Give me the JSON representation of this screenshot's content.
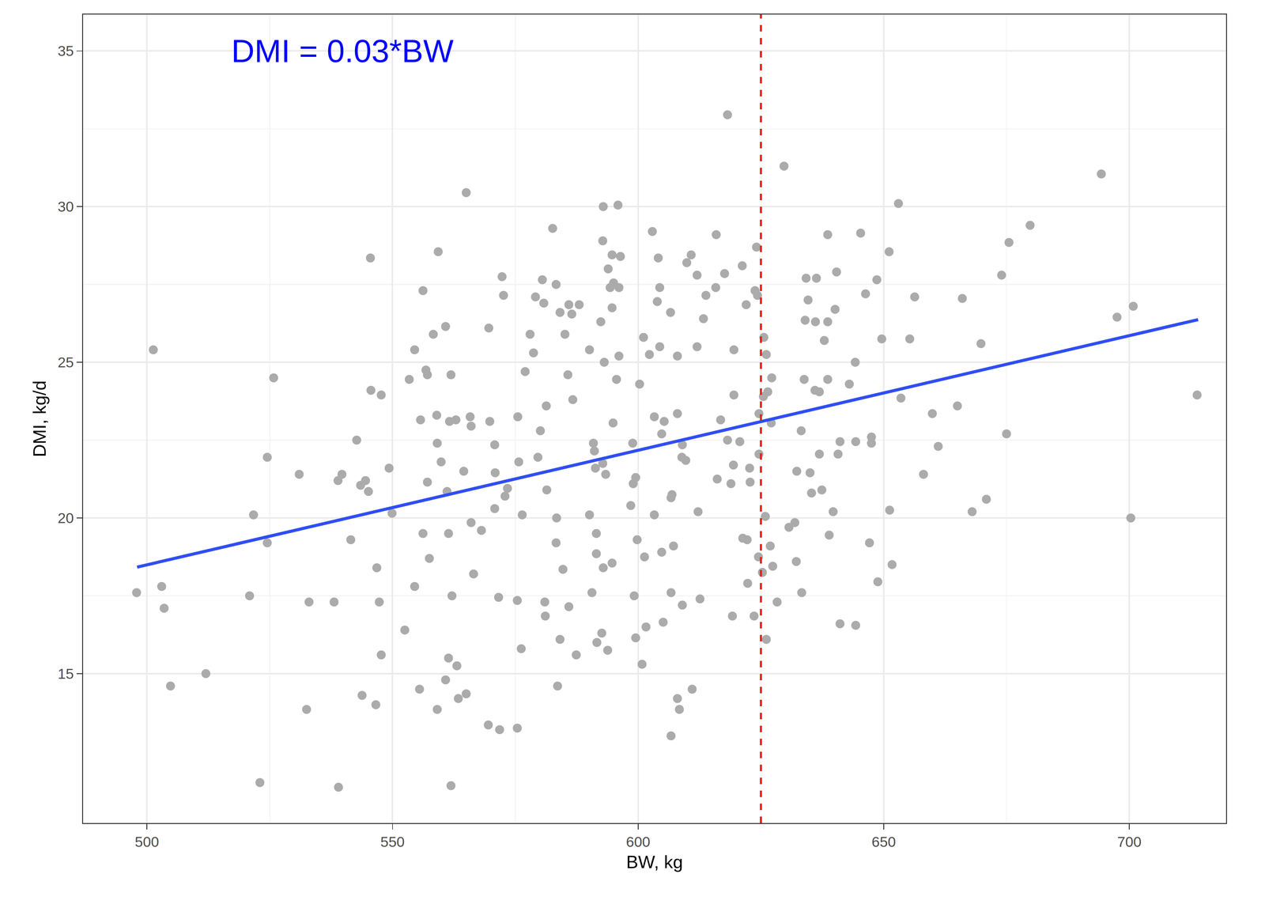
{
  "chart_data": {
    "type": "scatter",
    "annotations": [
      "DMI = 0.03*BW"
    ],
    "x_label": "BW, kg",
    "y_label": "DMI, kg/d",
    "xlim": [
      487,
      719.7
    ],
    "ylim": [
      10.2,
      36.17
    ],
    "xticks": [
      500,
      550,
      600,
      650,
      700
    ],
    "yticks": [
      15,
      20,
      25,
      30,
      35
    ],
    "grid": true,
    "series": [
      {
        "type": "scatter",
        "marker": "circle",
        "color": "#ababab",
        "x": [
          497.9,
          501.3,
          503,
          503.5,
          504.8,
          512,
          520.9,
          521.7,
          523,
          524.5,
          524.5,
          525.8,
          531,
          532.5,
          533,
          538.1,
          538.9,
          539,
          539.7,
          541.5,
          542.7,
          543.5,
          543.8,
          544.5,
          545.1,
          545.5,
          545.6,
          546.6,
          546.8,
          547.3,
          547.7,
          547.7,
          549.3,
          549.9,
          552.5,
          553.4,
          554.5,
          554.5,
          555.5,
          555.7,
          556.2,
          556.2,
          556.8,
          557.1,
          557.1,
          557.5,
          558.3,
          559,
          559.1,
          559.1,
          559.3,
          559.9,
          560.8,
          560.8,
          561.1,
          561.4,
          561.4,
          561.6,
          561.9,
          561.9,
          562.1,
          562.9,
          563.1,
          563.4,
          564.5,
          565,
          565,
          565.8,
          566,
          566,
          566.5,
          568.1,
          569.5,
          569.6,
          569.8,
          570.8,
          570.8,
          570.9,
          571.6,
          571.8,
          572.3,
          572.6,
          572.9,
          573.4,
          575.4,
          575.4,
          575.5,
          575.7,
          576.2,
          576.4,
          577,
          578,
          578.7,
          579.1,
          579.6,
          580.1,
          580.5,
          580.8,
          581,
          581.1,
          581.3,
          581.4,
          582.6,
          583.3,
          583.3,
          583.4,
          583.6,
          584.1,
          584.1,
          584.7,
          585.1,
          585.7,
          585.9,
          585.9,
          586.5,
          586.7,
          587.4,
          588,
          590.1,
          590.1,
          590.6,
          590.9,
          591.1,
          591.3,
          591.5,
          591.5,
          591.6,
          592.4,
          592.6,
          592.8,
          592.8,
          592.9,
          592.9,
          593.1,
          593.4,
          593.8,
          593.9,
          594.3,
          594.7,
          594.7,
          594.7,
          594.9,
          595,
          595.6,
          595.9,
          596.1,
          596.1,
          596.4,
          598.5,
          598.9,
          599,
          599.2,
          599.5,
          599.5,
          599.8,
          600.3,
          600.8,
          601.1,
          601.3,
          601.6,
          602.3,
          602.9,
          603.3,
          603.3,
          603.9,
          604.1,
          604.4,
          604.4,
          604.8,
          604.8,
          605.1,
          605.3,
          606.6,
          606.7,
          606.7,
          606.7,
          606.9,
          607.2,
          608,
          608,
          608,
          608.4,
          608.9,
          609,
          609,
          609.7,
          609.9,
          610.8,
          611,
          612,
          612,
          612.2,
          612.6,
          613.3,
          613.8,
          615.8,
          615.9,
          616.1,
          616.8,
          617.6,
          618.2,
          618.2,
          618.9,
          619.2,
          619.4,
          619.5,
          619.5,
          620.7,
          621.2,
          621.3,
          622,
          622.2,
          622.3,
          622.7,
          622.8,
          623.6,
          623.8,
          624.1,
          624.3,
          624.5,
          624.6,
          624.6,
          625.3,
          625.5,
          625.6,
          625.9,
          626.1,
          626.1,
          626.4,
          626.9,
          627.1,
          627.2,
          627.4,
          628.3,
          629.7,
          630.7,
          631.9,
          632.2,
          632.3,
          633.2,
          633.3,
          633.8,
          634,
          634.2,
          634.6,
          635,
          635.3,
          636,
          636.1,
          636.3,
          636.9,
          636.9,
          637.4,
          637.9,
          638.6,
          638.6,
          638.6,
          638.9,
          639.7,
          640.1,
          640.4,
          640.7,
          641.1,
          641.1,
          643,
          644.2,
          644.3,
          644.3,
          645.3,
          646.3,
          647.1,
          647.5,
          647.5,
          648.6,
          648.8,
          649.6,
          651.1,
          651.2,
          651.7,
          653,
          653.5,
          655.3,
          656.3,
          658.1,
          659.9,
          661.1,
          665,
          666,
          668,
          669.8,
          670.9,
          674,
          675,
          675.5,
          679.8,
          694.3,
          697.5,
          700.3,
          700.8,
          713.8
        ],
        "y": [
          17.6,
          25.4,
          17.8,
          17.1,
          14.6,
          15,
          17.5,
          20.1,
          11.5,
          21.95,
          19.2,
          24.5,
          21.4,
          13.85,
          17.3,
          17.3,
          21.2,
          11.35,
          21.4,
          19.3,
          22.5,
          21.05,
          14.3,
          21.2,
          20.85,
          28.35,
          24.1,
          14,
          18.4,
          17.3,
          23.95,
          15.6,
          21.6,
          20.15,
          16.4,
          24.45,
          25.4,
          17.8,
          14.5,
          23.15,
          27.3,
          19.5,
          24.75,
          24.6,
          21.15,
          18.7,
          25.9,
          23.3,
          22.4,
          13.85,
          28.55,
          21.8,
          26.15,
          14.8,
          20.85,
          15.5,
          19.5,
          23.1,
          24.6,
          11.4,
          17.5,
          23.15,
          15.25,
          14.2,
          21.5,
          30.45,
          14.35,
          23.25,
          22.95,
          19.85,
          18.2,
          19.6,
          13.35,
          26.1,
          23.1,
          22.35,
          20.3,
          21.45,
          17.45,
          13.2,
          27.75,
          27.15,
          20.7,
          20.95,
          13.25,
          17.35,
          23.25,
          21.8,
          15.8,
          20.1,
          24.7,
          25.9,
          25.3,
          27.1,
          21.95,
          22.8,
          27.65,
          26.9,
          17.3,
          16.85,
          23.6,
          20.9,
          29.3,
          27.5,
          19.2,
          20,
          14.6,
          16.1,
          26.6,
          18.35,
          25.9,
          24.6,
          26.85,
          17.15,
          26.55,
          23.8,
          15.6,
          26.85,
          25.4,
          20.1,
          17.6,
          22.4,
          22.15,
          21.6,
          19.5,
          18.85,
          16,
          26.3,
          16.3,
          21.75,
          28.9,
          30,
          18.4,
          25,
          21.4,
          15.75,
          28,
          27.4,
          28.45,
          26.75,
          18.55,
          23.05,
          27.55,
          24.45,
          30.05,
          27.4,
          25.2,
          28.4,
          20.4,
          22.4,
          21.1,
          17.5,
          21.3,
          16.15,
          19.3,
          24.3,
          15.3,
          25.8,
          18.75,
          16.5,
          25.25,
          29.2,
          23.25,
          20.1,
          26.95,
          28.35,
          27.4,
          25.5,
          22.7,
          18.9,
          16.65,
          23.1,
          26.6,
          20.65,
          17.6,
          13,
          20.75,
          19.1,
          25.2,
          23.35,
          14.2,
          13.85,
          21.95,
          17.2,
          22.35,
          21.85,
          28.2,
          28.45,
          14.5,
          27.8,
          25.5,
          20.2,
          17.4,
          26.4,
          27.15,
          27.4,
          29.1,
          21.25,
          23.15,
          27.85,
          22.5,
          32.95,
          21.1,
          16.85,
          21.7,
          25.4,
          23.95,
          22.45,
          28.1,
          19.35,
          26.85,
          19.3,
          17.9,
          21.6,
          21.15,
          16.85,
          27.3,
          28.7,
          27.15,
          18.75,
          23.35,
          22.05,
          18.25,
          23.9,
          25.8,
          20.05,
          16.1,
          25.25,
          24.05,
          19.1,
          23.05,
          24.5,
          18.45,
          17.3,
          31.3,
          19.7,
          19.85,
          18.6,
          21.5,
          22.8,
          17.6,
          24.45,
          26.35,
          27.7,
          27,
          21.45,
          20.8,
          24.1,
          26.3,
          27.7,
          24.05,
          22.05,
          20.9,
          25.7,
          26.3,
          24.45,
          29.1,
          19.45,
          20.2,
          26.7,
          27.9,
          22.05,
          22.45,
          16.6,
          24.3,
          25,
          22.45,
          16.55,
          29.15,
          27.2,
          19.2,
          22.6,
          22.4,
          27.65,
          17.95,
          25.75,
          28.55,
          20.25,
          18.5,
          30.1,
          23.85,
          25.75,
          27.1,
          21.4,
          23.35,
          22.3,
          23.6,
          27.05,
          20.2,
          25.6,
          20.6,
          27.8,
          22.7,
          28.85,
          29.4,
          31.05,
          26.45,
          20,
          26.8,
          23.95
        ]
      },
      {
        "type": "line",
        "line_style": "solid",
        "color": "#2f4ef5",
        "x": [
          498,
          714
        ],
        "y": [
          18.42,
          26.37
        ]
      },
      {
        "type": "line",
        "line_style": "dashed",
        "color": "#e8211f",
        "x": [
          625,
          625
        ],
        "y": [
          10.2,
          36.17
        ]
      }
    ]
  }
}
